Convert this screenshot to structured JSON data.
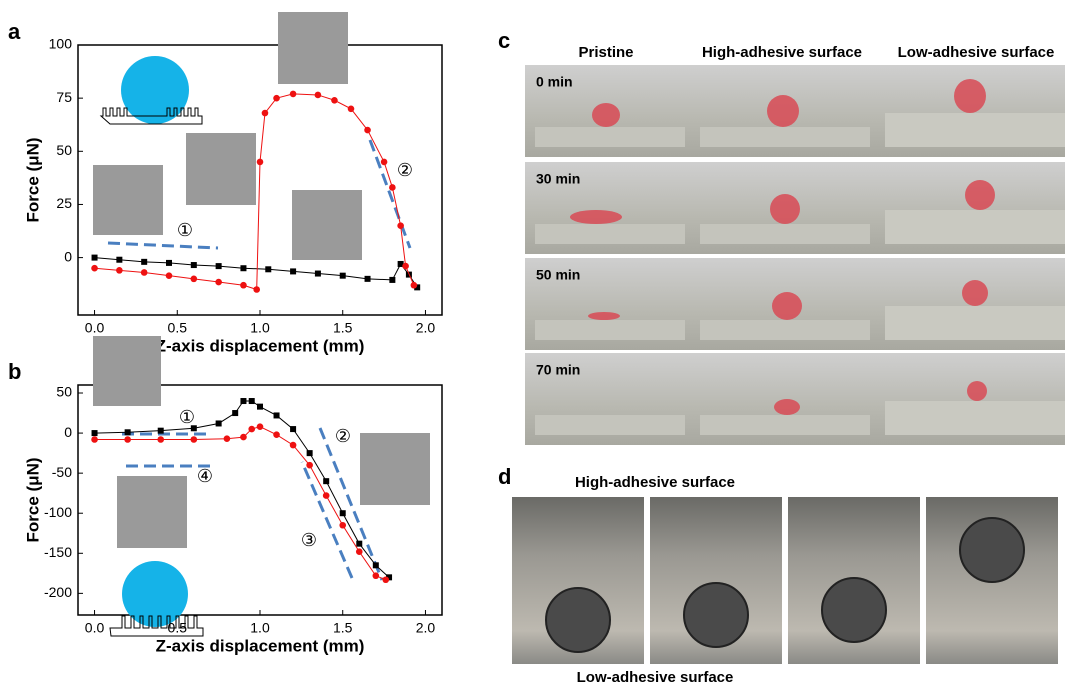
{
  "chart_data": [
    {
      "type": "line",
      "label": "a",
      "xlabel": "Z-axis displacement (mm)",
      "ylabel": "Force (μN)",
      "xlim": [
        -0.1,
        2.1
      ],
      "xticks": [
        {
          "value": 0,
          "label": "0.0"
        },
        0.5,
        {
          "value": 1,
          "label": "1.0"
        },
        1.5,
        {
          "value": 2,
          "label": "2.0"
        }
      ],
      "ylim": [
        -27,
        100
      ],
      "yticks": [
        0,
        25,
        50,
        75,
        100
      ],
      "annotations": [
        "①",
        "②"
      ],
      "series": [
        {
          "color": "#000000",
          "marker": "square",
          "x": [
            0,
            0.15,
            0.3,
            0.45,
            0.6,
            0.75,
            0.9,
            1.05,
            1.2,
            1.35,
            1.5,
            1.65,
            1.8,
            1.85,
            1.9,
            1.95
          ],
          "values": [
            0,
            -1,
            -2,
            -2.5,
            -3.5,
            -4,
            -5,
            -5.5,
            -6.5,
            -7.5,
            -8.5,
            -10,
            -10.5,
            -3,
            -8,
            -14
          ]
        },
        {
          "color": "#ee1111",
          "marker": "circle",
          "x": [
            0,
            0.15,
            0.3,
            0.45,
            0.6,
            0.75,
            0.9,
            0.98,
            1.0,
            1.03,
            1.1,
            1.2,
            1.35,
            1.45,
            1.55,
            1.65,
            1.75,
            1.8,
            1.85,
            1.88,
            1.93
          ],
          "values": [
            -5,
            -6,
            -7,
            -8.5,
            -10,
            -11.5,
            -13,
            -15,
            45,
            68,
            75,
            77,
            76.5,
            74,
            70,
            60,
            45,
            33,
            15,
            -4,
            -13
          ]
        }
      ]
    },
    {
      "type": "line",
      "label": "b",
      "xlabel": "Z-axis displacement (mm)",
      "ylabel": "Force (μN)",
      "xlim": [
        -0.1,
        2.1
      ],
      "xticks": [
        {
          "value": 0,
          "label": "0.0"
        },
        0.5,
        {
          "value": 1,
          "label": "1.0"
        },
        1.5,
        {
          "value": 2,
          "label": "2.0"
        }
      ],
      "ylim": [
        -227,
        60
      ],
      "yticks": [
        50,
        0,
        -50,
        -100,
        -150,
        -200
      ],
      "annotations": [
        "①",
        "②",
        "③",
        "④"
      ],
      "series": [
        {
          "color": "#000000",
          "marker": "square",
          "x": [
            0,
            0.2,
            0.4,
            0.6,
            0.75,
            0.85,
            0.9,
            0.95,
            1.0,
            1.1,
            1.2,
            1.3,
            1.4,
            1.5,
            1.6,
            1.7,
            1.78
          ],
          "values": [
            0,
            1,
            3,
            6,
            12,
            25,
            40,
            40,
            33,
            22,
            5,
            -25,
            -60,
            -100,
            -138,
            -165,
            -180
          ]
        },
        {
          "color": "#ee1111",
          "marker": "circle",
          "x": [
            0,
            0.2,
            0.4,
            0.6,
            0.8,
            0.9,
            0.95,
            1.0,
            1.1,
            1.2,
            1.3,
            1.4,
            1.5,
            1.6,
            1.7,
            1.76
          ],
          "values": [
            -8,
            -8,
            -8,
            -8,
            -7,
            -5,
            5,
            8,
            -2,
            -15,
            -40,
            -78,
            -115,
            -148,
            -178,
            -183
          ]
        }
      ]
    }
  ],
  "panel_c": {
    "label": "c",
    "columns": [
      "Pristine",
      "High-adhesive surface",
      "Low-adhesive surface"
    ],
    "rows": [
      "0 min",
      "30 min",
      "50 min",
      "70 min"
    ]
  },
  "panel_d": {
    "label": "d",
    "top": "High-adhesive surface",
    "bottom": "Low-adhesive surface"
  }
}
